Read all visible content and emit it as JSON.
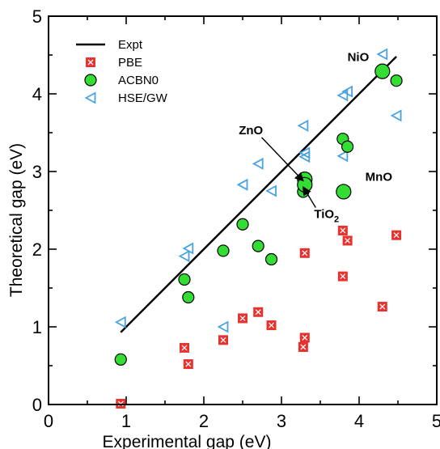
{
  "chart_data": {
    "type": "scatter",
    "title": "",
    "xlabel": "Experimental gap (eV)",
    "ylabel": "Theoretical gap (eV)",
    "xlim": [
      0,
      5
    ],
    "ylim": [
      0,
      5
    ],
    "x_ticks": [
      "0",
      "1",
      "2",
      "3",
      "4",
      "5"
    ],
    "y_ticks": [
      "0",
      "1",
      "2",
      "3",
      "4",
      "5"
    ],
    "legend_position": "top-left",
    "colors": {
      "expt": "#000000",
      "pbe": "#e8322f",
      "acbn0": "#33dd33",
      "hse": "#4aa3e0"
    },
    "series": [
      {
        "name": "Expt",
        "kind": "line",
        "x": [
          0.93,
          4.48
        ],
        "y": [
          0.93,
          4.48
        ]
      },
      {
        "name": "PBE",
        "kind": "square",
        "x": [
          0.93,
          1.75,
          1.8,
          2.25,
          2.5,
          2.7,
          2.87,
          3.28,
          3.3,
          3.3,
          3.79,
          3.79,
          3.85,
          4.3,
          4.48
        ],
        "y": [
          0.01,
          0.73,
          0.52,
          0.83,
          1.11,
          1.19,
          1.02,
          0.74,
          0.86,
          1.95,
          2.24,
          1.65,
          2.11,
          1.26,
          2.18
        ]
      },
      {
        "name": "ACBN0",
        "kind": "circle",
        "x": [
          0.93,
          1.75,
          1.8,
          2.25,
          2.5,
          2.7,
          2.87,
          3.28,
          3.3,
          3.3,
          3.79,
          3.85,
          3.8,
          4.3,
          4.48
        ],
        "y": [
          0.58,
          1.61,
          1.38,
          1.98,
          2.32,
          2.04,
          1.87,
          2.74,
          2.9,
          2.83,
          3.42,
          3.32,
          2.74,
          4.29,
          4.17
        ],
        "large": [
          false,
          false,
          false,
          false,
          false,
          false,
          false,
          false,
          true,
          true,
          false,
          false,
          true,
          true,
          false
        ]
      },
      {
        "name": "HSE/GW",
        "kind": "triangle",
        "x": [
          0.93,
          1.75,
          1.8,
          2.25,
          2.5,
          2.7,
          2.87,
          3.28,
          3.3,
          3.3,
          3.79,
          3.79,
          3.85,
          4.3,
          4.48
        ],
        "y": [
          1.06,
          1.91,
          2.01,
          1.0,
          2.83,
          3.1,
          2.75,
          3.59,
          3.19,
          3.24,
          3.2,
          3.98,
          4.03,
          4.51,
          3.72
        ]
      }
    ],
    "annotations": [
      {
        "text": "NiO",
        "x": 3.85,
        "y": 4.42,
        "arrow": false
      },
      {
        "text": "ZnO",
        "x": 2.45,
        "y": 3.48,
        "arrow": true,
        "arrow_to": [
          3.3,
          2.88
        ]
      },
      {
        "text": "MnO",
        "x": 4.08,
        "y": 2.88,
        "arrow": false
      },
      {
        "text": "TiO",
        "sub": "2",
        "x": 3.42,
        "y": 2.4,
        "arrow": true,
        "arrow_to": [
          3.3,
          2.8
        ]
      }
    ]
  }
}
